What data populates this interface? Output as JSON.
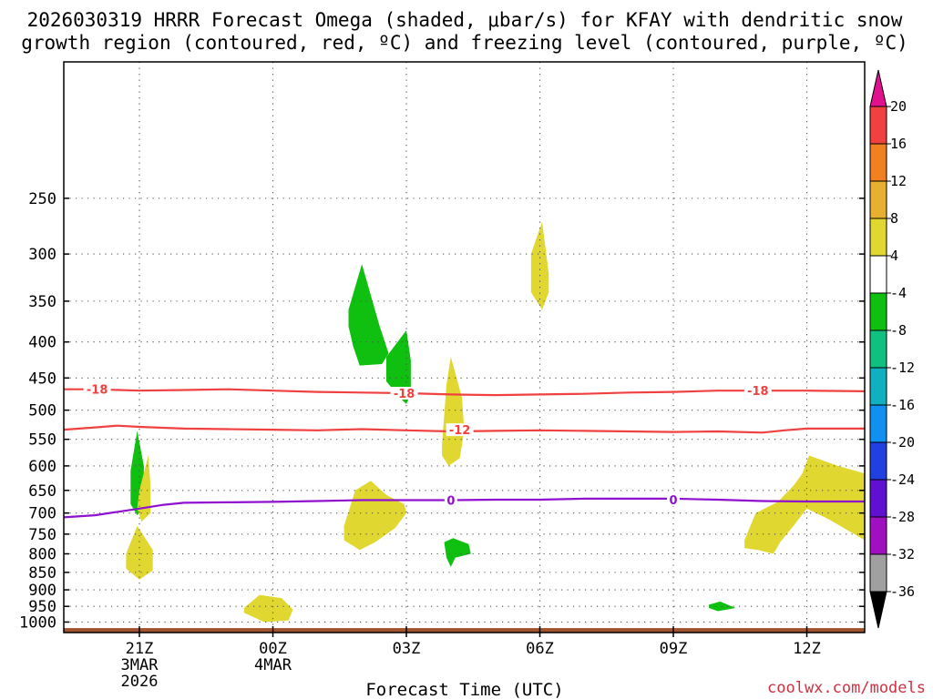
{
  "chart_data": {
    "type": "contour",
    "title_line1": "2026030319 HRRR Forecast Omega (shaded, μbar/s) for KFAY with dendritic snow",
    "title_line2": "growth region (contoured, red, ºC) and freezing level (contoured, purple, ºC)",
    "xlabel": "Forecast Time (UTC)",
    "credit": "coolwx.com/models",
    "x_range_hours": [
      -1.7,
      16.3
    ],
    "y_range_hpa": [
      160,
      1035
    ],
    "y_ticks": [
      250,
      300,
      350,
      400,
      450,
      500,
      550,
      600,
      650,
      700,
      750,
      800,
      850,
      900,
      950,
      1000
    ],
    "x_ticks": [
      {
        "hour": 0,
        "label": "21Z",
        "line2": "3MAR",
        "line3": "2026"
      },
      {
        "hour": 3,
        "label": "00Z",
        "line2": "4MAR",
        "line3": ""
      },
      {
        "hour": 6,
        "label": "03Z",
        "line2": "",
        "line3": ""
      },
      {
        "hour": 9,
        "label": "06Z",
        "line2": "",
        "line3": ""
      },
      {
        "hour": 12,
        "label": "09Z",
        "line2": "",
        "line3": ""
      },
      {
        "hour": 15,
        "label": "12Z",
        "line2": "",
        "line3": ""
      }
    ],
    "colorbar": {
      "bins": [
        {
          "min": 16,
          "max": 20,
          "color": "#f04040"
        },
        {
          "min": 12,
          "max": 16,
          "color": "#f08020"
        },
        {
          "min": 8,
          "max": 12,
          "color": "#e8b030"
        },
        {
          "min": 4,
          "max": 8,
          "color": "#e0d830"
        },
        {
          "min": -4,
          "max": 4,
          "color": "#ffffff"
        },
        {
          "min": -8,
          "max": -4,
          "color": "#10c010"
        },
        {
          "min": -12,
          "max": -8,
          "color": "#10c080"
        },
        {
          "min": -16,
          "max": -12,
          "color": "#10b0c0"
        },
        {
          "min": -20,
          "max": -16,
          "color": "#1090f0"
        },
        {
          "min": -24,
          "max": -20,
          "color": "#2040e0"
        },
        {
          "min": -28,
          "max": -24,
          "color": "#6010d0"
        },
        {
          "min": -32,
          "max": -28,
          "color": "#a010c0"
        },
        {
          "min": -36,
          "max": -32,
          "color": "#a0a0a0"
        }
      ],
      "top_arrow_color": "#e0108f",
      "bottom_arrow_color": "#000000",
      "labels": [
        "20",
        "16",
        "12",
        "8",
        "4",
        "-4",
        "-8",
        "-12",
        "-16",
        "-20",
        "-24",
        "-28",
        "-32",
        "-36"
      ]
    },
    "regions": [
      {
        "color": "#10c010",
        "pts": [
          [
            -0.2,
            610
          ],
          [
            -0.05,
            535
          ],
          [
            0.1,
            600
          ],
          [
            0.1,
            685
          ],
          [
            -0.05,
            705
          ],
          [
            -0.2,
            680
          ]
        ]
      },
      {
        "color": "#e0d830",
        "pts": [
          [
            0.0,
            650
          ],
          [
            0.2,
            580
          ],
          [
            0.25,
            640
          ],
          [
            0.25,
            700
          ],
          [
            0.05,
            720
          ],
          [
            -0.05,
            690
          ]
        ]
      },
      {
        "color": "#e0d830",
        "pts": [
          [
            -0.3,
            800
          ],
          [
            -0.05,
            730
          ],
          [
            0.3,
            790
          ],
          [
            0.3,
            845
          ],
          [
            0.0,
            870
          ],
          [
            -0.3,
            840
          ]
        ]
      },
      {
        "color": "#e0d830",
        "pts": [
          [
            2.35,
            955
          ],
          [
            2.7,
            915
          ],
          [
            3.2,
            925
          ],
          [
            3.45,
            960
          ],
          [
            3.35,
            995
          ],
          [
            2.8,
            1000
          ],
          [
            2.35,
            970
          ]
        ]
      },
      {
        "color": "#10c010",
        "pts": [
          [
            4.7,
            360
          ],
          [
            5.0,
            310
          ],
          [
            5.4,
            380
          ],
          [
            5.6,
            415
          ],
          [
            5.45,
            430
          ],
          [
            4.95,
            432
          ],
          [
            4.8,
            405
          ],
          [
            4.7,
            380
          ]
        ]
      },
      {
        "color": "#e0d830",
        "pts": [
          [
            4.6,
            730
          ],
          [
            4.85,
            650
          ],
          [
            5.2,
            630
          ],
          [
            5.55,
            660
          ],
          [
            5.95,
            680
          ],
          [
            6.0,
            700
          ],
          [
            5.75,
            735
          ],
          [
            5.3,
            770
          ],
          [
            4.95,
            790
          ],
          [
            4.6,
            765
          ]
        ]
      },
      {
        "color": "#10c010",
        "pts": [
          [
            5.55,
            420
          ],
          [
            6.0,
            385
          ],
          [
            6.1,
            425
          ],
          [
            6.1,
            475
          ],
          [
            6.0,
            490
          ],
          [
            5.85,
            480
          ],
          [
            5.55,
            455
          ]
        ]
      },
      {
        "color": "#e0d830",
        "pts": [
          [
            6.8,
            560
          ],
          [
            6.9,
            460
          ],
          [
            7.0,
            420
          ],
          [
            7.25,
            480
          ],
          [
            7.3,
            535
          ],
          [
            7.2,
            585
          ],
          [
            6.95,
            600
          ],
          [
            6.8,
            580
          ]
        ]
      },
      {
        "color": "#10c010",
        "pts": [
          [
            6.85,
            770
          ],
          [
            7.05,
            760
          ],
          [
            7.4,
            775
          ],
          [
            7.45,
            800
          ],
          [
            7.1,
            810
          ],
          [
            7.0,
            835
          ],
          [
            6.9,
            810
          ]
        ]
      },
      {
        "color": "#e0d830",
        "pts": [
          [
            8.8,
            300
          ],
          [
            9.05,
            270
          ],
          [
            9.2,
            320
          ],
          [
            9.2,
            340
          ],
          [
            9.05,
            360
          ],
          [
            8.8,
            340
          ]
        ]
      },
      {
        "color": "#10c010",
        "pts": [
          [
            12.8,
            945
          ],
          [
            13.05,
            935
          ],
          [
            13.4,
            955
          ],
          [
            13.0,
            965
          ],
          [
            12.8,
            955
          ]
        ]
      },
      {
        "color": "#e0d830",
        "pts": [
          [
            13.6,
            765
          ],
          [
            13.85,
            700
          ],
          [
            14.35,
            675
          ],
          [
            14.7,
            640
          ],
          [
            14.9,
            615
          ],
          [
            15.05,
            580
          ],
          [
            15.7,
            600
          ],
          [
            16.3,
            615
          ],
          [
            16.3,
            765
          ],
          [
            15.5,
            715
          ],
          [
            15.0,
            690
          ],
          [
            14.7,
            730
          ],
          [
            14.4,
            770
          ],
          [
            14.25,
            800
          ],
          [
            13.9,
            790
          ],
          [
            13.6,
            785
          ]
        ]
      }
    ],
    "ground": {
      "color": "#a0522d",
      "p_top": 1020
    },
    "contours": [
      {
        "name": "-18",
        "color": "#f04040",
        "x": [
          -1.7,
          -1.0,
          0.0,
          1.0,
          2.0,
          3.0,
          4.0,
          5.0,
          6.0,
          7.0,
          8.0,
          9.0,
          10.0,
          11.0,
          12.0,
          13.0,
          14.0,
          15.0,
          16.3
        ],
        "p": [
          467,
          467,
          469,
          468,
          467,
          469,
          471,
          472,
          473,
          475,
          476,
          475,
          474,
          472,
          471,
          469,
          469,
          469,
          470
        ]
      },
      {
        "name": "-12",
        "color": "#f04040",
        "x": [
          -1.7,
          -1.0,
          -0.5,
          0.0,
          1.0,
          2.0,
          3.0,
          4.0,
          5.0,
          6.0,
          7.0,
          8.0,
          9.0,
          10.0,
          11.0,
          12.0,
          13.0,
          14.0,
          14.5,
          15.0,
          16.3
        ],
        "p": [
          533,
          529,
          526,
          528,
          531,
          532,
          533,
          534,
          532,
          534,
          536,
          535,
          534,
          535,
          536,
          537,
          536,
          538,
          534,
          531,
          531
        ]
      },
      {
        "name": "0",
        "color": "#9010d0",
        "x": [
          -1.7,
          -1.0,
          0.0,
          0.5,
          1.0,
          2.0,
          3.0,
          4.0,
          5.0,
          6.0,
          7.0,
          8.0,
          9.0,
          10.0,
          11.0,
          12.0,
          13.0,
          14.0,
          15.0,
          16.3
        ],
        "p": [
          710,
          705,
          690,
          682,
          677,
          676,
          675,
          673,
          671,
          671,
          671,
          670,
          670,
          668,
          668,
          668,
          670,
          673,
          674,
          674
        ]
      }
    ],
    "contour_labels": [
      {
        "text": "-18",
        "color": "#f04040",
        "x": -0.95,
        "p": 467
      },
      {
        "text": "-18",
        "color": "#f04040",
        "x": 5.95,
        "p": 473
      },
      {
        "text": "-18",
        "color": "#f04040",
        "x": 13.9,
        "p": 469
      },
      {
        "text": "-12",
        "color": "#f04040",
        "x": 7.2,
        "p": 533
      },
      {
        "text": "0",
        "color": "#9010d0",
        "x": 7.0,
        "p": 671
      },
      {
        "text": "0",
        "color": "#9010d0",
        "x": 12.0,
        "p": 670
      }
    ]
  }
}
